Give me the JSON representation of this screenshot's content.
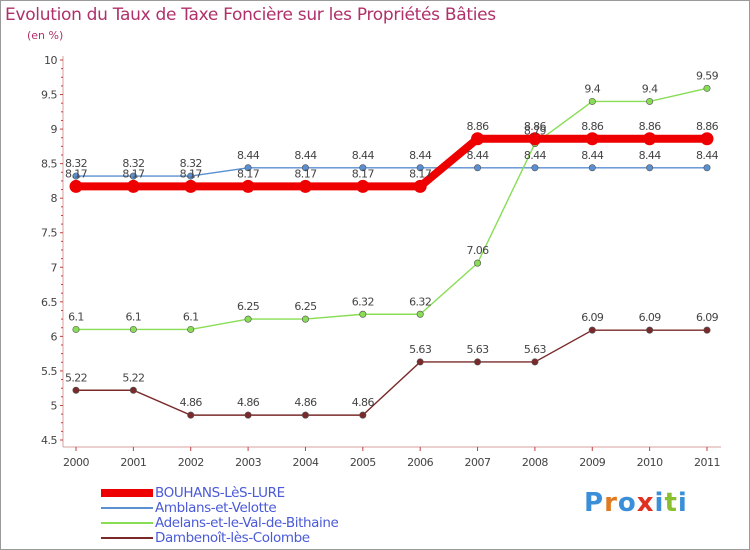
{
  "chart_data": {
    "type": "line",
    "title": "Evolution du Taux de Taxe Foncière sur les Propriétés Bâties",
    "subtitle": "(en %)",
    "xlabel": "",
    "ylabel": "",
    "categories": [
      "2000",
      "2001",
      "2002",
      "2003",
      "2004",
      "2005",
      "2006",
      "2007",
      "2008",
      "2009",
      "2010",
      "2011"
    ],
    "ylim": [
      4.5,
      10
    ],
    "yticks": [
      "4.5",
      "5",
      "5.5",
      "6",
      "6.5",
      "7",
      "7.5",
      "8",
      "8.5",
      "9",
      "9.5",
      "10"
    ],
    "grid": false,
    "series": [
      {
        "name": "BOUHANS-LèS-LURE",
        "color": "#ee0000",
        "emphasis": true,
        "values": [
          8.17,
          8.17,
          8.17,
          8.17,
          8.17,
          8.17,
          8.17,
          8.86,
          8.86,
          8.86,
          8.86,
          8.86
        ],
        "labels": [
          "8.17",
          "8.17",
          "8.17",
          "8.17",
          "8.17",
          "8.17",
          "8.17",
          "8.86",
          "8.86",
          "8.86",
          "8.86",
          "8.86"
        ]
      },
      {
        "name": "Amblans-et-Velotte",
        "color": "#5a8fd0",
        "values": [
          8.32,
          8.32,
          8.32,
          8.44,
          8.44,
          8.44,
          8.44,
          8.44,
          8.44,
          8.44,
          8.44,
          8.44
        ],
        "labels": [
          "8.32",
          "8.32",
          "8.32",
          "8.44",
          "8.44",
          "8.44",
          "8.44",
          "8.44",
          "8.44",
          "8.44",
          "8.44",
          "8.44"
        ]
      },
      {
        "name": "Adelans-et-le-Val-de-Bithaine",
        "color": "#88dd55",
        "values": [
          6.1,
          6.1,
          6.1,
          6.25,
          6.25,
          6.32,
          6.32,
          7.06,
          8.79,
          9.4,
          9.4,
          9.59
        ],
        "labels": [
          "6.1",
          "6.1",
          "6.1",
          "6.25",
          "6.25",
          "6.32",
          "6.32",
          "7.06",
          "8.79",
          "9.4",
          "9.4",
          "9.59"
        ]
      },
      {
        "name": "Dambenoît-lès-Colombe",
        "color": "#7a2a2a",
        "values": [
          5.22,
          5.22,
          4.86,
          4.86,
          4.86,
          4.86,
          5.63,
          5.63,
          5.63,
          6.09,
          6.09,
          6.09
        ],
        "labels": [
          "5.22",
          "5.22",
          "4.86",
          "4.86",
          "4.86",
          "4.86",
          "5.63",
          "5.63",
          "5.63",
          "6.09",
          "6.09",
          "6.09"
        ]
      }
    ],
    "legend_position": "bottom-left"
  },
  "brand": {
    "letters": [
      "P",
      "r",
      "o",
      "x",
      "i",
      "t",
      "i"
    ],
    "colors": [
      "#3a8fd8",
      "#e07a20",
      "#3a8fd8",
      "#e03020",
      "#3a8fd8",
      "#8ac030",
      "#3a8fd8"
    ]
  }
}
